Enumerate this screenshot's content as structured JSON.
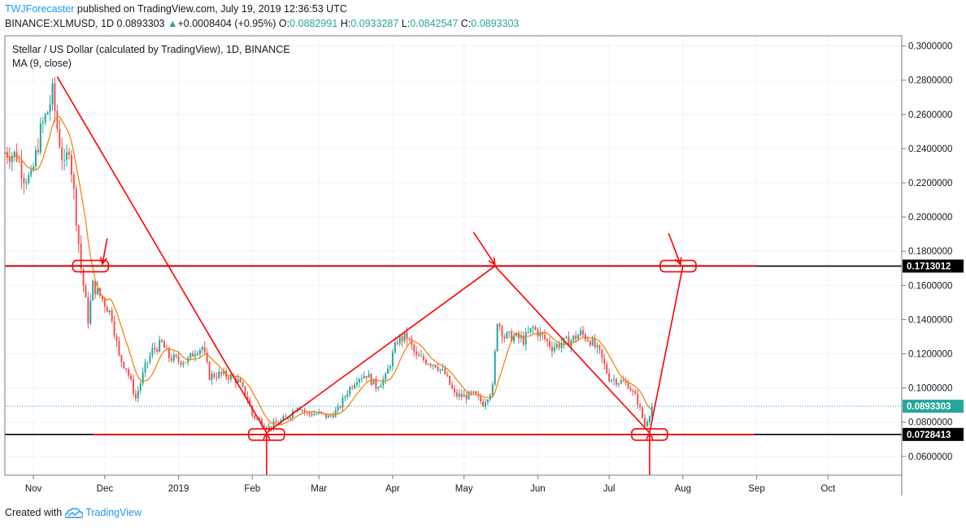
{
  "header": {
    "author": "TWJForecaster",
    "published_text": "published on TradingView.com, July 19, 2019 12:36:53 UTC",
    "symbol": "BINANCE:XLMUSD, 1D",
    "last": "0.0893303",
    "change_arrow": "▲",
    "change": "+0.0008404 (+0.95%)",
    "o_label": "O:",
    "o": "0.0882991",
    "h_label": "H:",
    "h": "0.0933287",
    "l_label": "L:",
    "l": "0.0842547",
    "c_label": "C:",
    "c": "0.0893303"
  },
  "legend": {
    "title": "Stellar / US Dollar (calculated by TradingView), 1D, BINANCE",
    "ma": "MA (9, close)"
  },
  "footer": {
    "created_with": "Created with",
    "brand": "TradingView",
    "logo_icon": "tradingview-cloud-icon"
  },
  "colors": {
    "up": "#26a69a",
    "down": "#ef5350",
    "ma": "#f57c00",
    "drawing": "#ff0000",
    "hline": "#000000",
    "last_price": "#26a69a",
    "grid": "#f0f3fa"
  },
  "chart_data": {
    "type": "candlestick",
    "x_tick_labels": [
      "Nov",
      "Dec",
      "2019",
      "Feb",
      "Mar",
      "Apr",
      "May",
      "Jun",
      "Jul",
      "Aug",
      "Sep",
      "Oct"
    ],
    "y_tick_labels": [
      "0.3000000",
      "0.2800000",
      "0.2600000",
      "0.2400000",
      "0.2200000",
      "0.2000000",
      "0.1800000",
      "0.1600000",
      "0.1400000",
      "0.1200000",
      "0.1000000",
      "0.0800000",
      "0.0600000"
    ],
    "ylim": [
      0.049,
      0.306
    ],
    "log_scale": false,
    "grid": true,
    "price_labels": [
      {
        "value": 0.1713012,
        "text": "0.1713012",
        "color": "#000000"
      },
      {
        "value": 0.0893303,
        "text": "0.0893303",
        "color": "#26a69a"
      },
      {
        "value": 0.0728413,
        "text": "0.0728413",
        "color": "#000000"
      }
    ],
    "horizontal_lines": [
      0.1713012,
      0.0728413
    ],
    "last_price": 0.0893303,
    "close_path": [
      [
        "2018-10-20",
        0.238
      ],
      [
        "2018-10-25",
        0.236
      ],
      [
        "2018-10-28",
        0.224
      ],
      [
        "2018-10-31",
        0.222
      ],
      [
        "2018-11-04",
        0.25
      ],
      [
        "2018-11-07",
        0.262
      ],
      [
        "2018-11-09",
        0.272
      ],
      [
        "2018-11-11",
        0.252
      ],
      [
        "2018-11-14",
        0.228
      ],
      [
        "2018-11-16",
        0.242
      ],
      [
        "2018-11-19",
        0.2
      ],
      [
        "2018-11-21",
        0.17
      ],
      [
        "2018-11-24",
        0.14
      ],
      [
        "2018-11-26",
        0.16
      ],
      [
        "2018-11-30",
        0.152
      ],
      [
        "2018-12-04",
        0.142
      ],
      [
        "2018-12-07",
        0.118
      ],
      [
        "2018-12-10",
        0.112
      ],
      [
        "2018-12-14",
        0.094
      ],
      [
        "2018-12-18",
        0.112
      ],
      [
        "2018-12-21",
        0.122
      ],
      [
        "2018-12-25",
        0.126
      ],
      [
        "2018-12-28",
        0.118
      ],
      [
        "2019-01-01",
        0.116
      ],
      [
        "2019-01-05",
        0.116
      ],
      [
        "2019-01-08",
        0.122
      ],
      [
        "2019-01-11",
        0.124
      ],
      [
        "2019-01-14",
        0.107
      ],
      [
        "2019-01-18",
        0.108
      ],
      [
        "2019-01-22",
        0.107
      ],
      [
        "2019-01-26",
        0.104
      ],
      [
        "2019-01-30",
        0.094
      ],
      [
        "2019-02-01",
        0.084
      ],
      [
        "2019-02-05",
        0.08
      ],
      [
        "2019-02-08",
        0.077
      ],
      [
        "2019-02-12",
        0.08
      ],
      [
        "2019-02-16",
        0.083
      ],
      [
        "2019-02-20",
        0.09
      ],
      [
        "2019-02-24",
        0.085
      ],
      [
        "2019-03-01",
        0.085
      ],
      [
        "2019-03-05",
        0.083
      ],
      [
        "2019-03-09",
        0.087
      ],
      [
        "2019-03-13",
        0.098
      ],
      [
        "2019-03-17",
        0.106
      ],
      [
        "2019-03-21",
        0.108
      ],
      [
        "2019-03-25",
        0.101
      ],
      [
        "2019-03-29",
        0.106
      ],
      [
        "2019-04-03",
        0.128
      ],
      [
        "2019-04-07",
        0.13
      ],
      [
        "2019-04-11",
        0.118
      ],
      [
        "2019-04-15",
        0.116
      ],
      [
        "2019-04-19",
        0.114
      ],
      [
        "2019-04-23",
        0.108
      ],
      [
        "2019-04-27",
        0.096
      ],
      [
        "2019-05-01",
        0.095
      ],
      [
        "2019-05-05",
        0.096
      ],
      [
        "2019-05-09",
        0.091
      ],
      [
        "2019-05-13",
        0.1
      ],
      [
        "2019-05-15",
        0.14
      ],
      [
        "2019-05-18",
        0.13
      ],
      [
        "2019-05-22",
        0.13
      ],
      [
        "2019-05-26",
        0.128
      ],
      [
        "2019-05-30",
        0.135
      ],
      [
        "2019-06-03",
        0.13
      ],
      [
        "2019-06-07",
        0.124
      ],
      [
        "2019-06-11",
        0.126
      ],
      [
        "2019-06-15",
        0.128
      ],
      [
        "2019-06-19",
        0.132
      ],
      [
        "2019-06-23",
        0.128
      ],
      [
        "2019-06-27",
        0.12
      ],
      [
        "2019-07-01",
        0.106
      ],
      [
        "2019-07-05",
        0.104
      ],
      [
        "2019-07-09",
        0.102
      ],
      [
        "2019-07-13",
        0.092
      ],
      [
        "2019-07-16",
        0.078
      ],
      [
        "2019-07-19",
        0.0893
      ]
    ],
    "annotations": {
      "lines": [
        {
          "from": [
            "2018-11-11",
            0.282
          ],
          "to": [
            "2019-02-07",
            0.0738
          ]
        },
        {
          "from": [
            "2019-02-07",
            0.0738
          ],
          "to": [
            "2019-05-14",
            0.1713
          ]
        },
        {
          "from": [
            "2019-05-14",
            0.1713
          ],
          "to": [
            "2019-07-18",
            0.0738
          ]
        },
        {
          "from": [
            "2019-07-18",
            0.0738
          ],
          "to": [
            "2019-08-01",
            0.1713
          ]
        },
        {
          "from": [
            "2018-11-26",
            0.0728
          ],
          "to": [
            "2019-08-31",
            0.0728
          ]
        },
        {
          "from": [
            "2018-10-20",
            0.1715
          ],
          "to": [
            "2019-09-01",
            0.1715
          ]
        }
      ],
      "arrows": [
        {
          "from": [
            "2018-12-02",
            0.1875
          ],
          "to": [
            "2018-11-30",
            0.1725
          ]
        },
        {
          "from": [
            "2019-05-05",
            0.191
          ],
          "to": [
            "2019-05-14",
            0.1722
          ]
        },
        {
          "from": [
            "2019-07-26",
            0.1905
          ],
          "to": [
            "2019-07-31",
            0.1722
          ]
        },
        {
          "from": [
            "2019-02-07",
            0.049
          ],
          "to": [
            "2019-02-07",
            0.0738
          ]
        },
        {
          "from": [
            "2019-07-18",
            0.049
          ],
          "to": [
            "2019-07-18",
            0.0738
          ]
        }
      ],
      "boxes": [
        {
          "center": [
            "2018-11-25",
            0.1713
          ]
        },
        {
          "center": [
            "2019-02-07",
            0.0728
          ]
        },
        {
          "center": [
            "2019-07-18",
            0.0728
          ]
        },
        {
          "center": [
            "2019-07-30",
            0.1713
          ]
        }
      ]
    }
  }
}
